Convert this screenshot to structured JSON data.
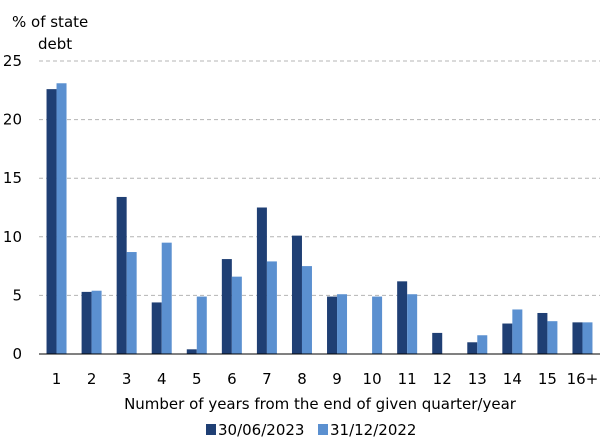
{
  "chart_data": {
    "type": "bar",
    "ylabel": "% of state debt",
    "ylabel_lines": [
      "% of state",
      "debt"
    ],
    "xlabel": "Number of years from the end of given quarter/year",
    "categories": [
      "1",
      "2",
      "3",
      "4",
      "5",
      "6",
      "7",
      "8",
      "9",
      "10",
      "11",
      "12",
      "13",
      "14",
      "15",
      "16+"
    ],
    "yticks": [
      0,
      5,
      10,
      15,
      20,
      25
    ],
    "ylim": [
      0,
      25
    ],
    "grid": true,
    "legend_position": "bottom",
    "series": [
      {
        "name": "30/06/2023",
        "color": "#1f3f74",
        "values": [
          22.6,
          5.3,
          13.4,
          4.4,
          0.4,
          8.1,
          12.5,
          10.1,
          4.9,
          0.0,
          6.2,
          1.8,
          1.0,
          2.6,
          3.5,
          2.7
        ]
      },
      {
        "name": "31/12/2022",
        "color": "#5b90d0",
        "values": [
          23.1,
          5.4,
          8.7,
          9.5,
          4.9,
          6.6,
          7.9,
          7.5,
          5.1,
          4.9,
          5.1,
          0.0,
          1.6,
          3.8,
          2.8,
          2.7
        ]
      }
    ]
  }
}
